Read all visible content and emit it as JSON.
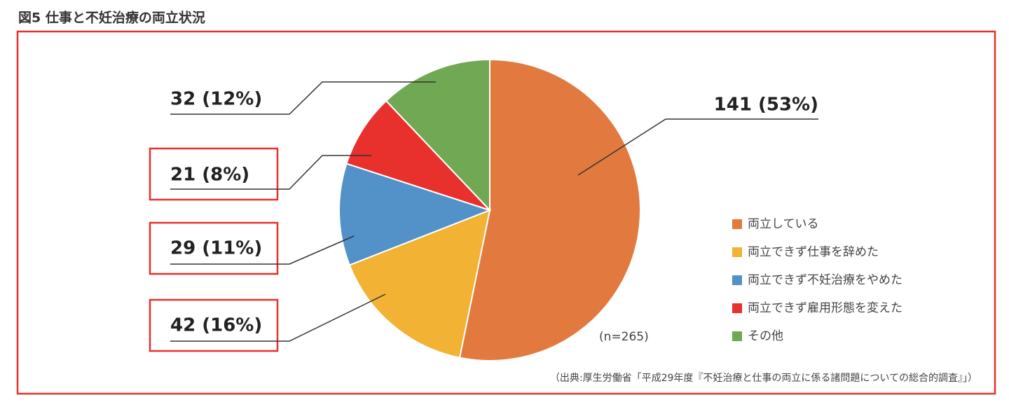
{
  "chart_data": {
    "type": "pie",
    "title": "図5 仕事と不妊治療の両立状況",
    "categories": [
      "両立している",
      "両立できず仕事を辞めた",
      "両立できず不妊治療をやめた",
      "両立できず雇用形態を変えた",
      "その他"
    ],
    "values": [
      141,
      42,
      29,
      21,
      32
    ],
    "value_labels": [
      "141 (53%)",
      "42 (16%)",
      "29 (11%)",
      "21 (8%)",
      "32 (12%)"
    ],
    "colors": [
      "#e27a3f",
      "#f2b233",
      "#5392c8",
      "#e8302c",
      "#71a853"
    ],
    "annotation": "(n=265)",
    "source": "（出典:厚生労働省「平成29年度『不妊治療と仕事の両立に係る諸問題についての総合的調査』」）"
  }
}
